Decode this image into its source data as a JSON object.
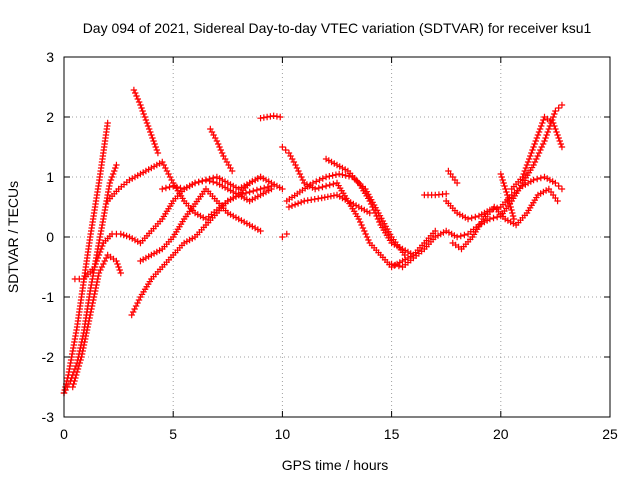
{
  "chart_data": {
    "type": "scatter",
    "title": "Day 094 of 2021, Sidereal Day-to-day VTEC variation (SDTVAR) for receiver ksu1",
    "xlabel": "GPS time / hours",
    "ylabel": "SDTVAR / TECUs",
    "xlim": [
      0,
      25
    ],
    "ylim": [
      -3,
      3
    ],
    "xticks": [
      "0",
      "5",
      "10",
      "15",
      "20",
      "25"
    ],
    "yticks": [
      "-3",
      "-2",
      "-1",
      "0",
      "1",
      "2",
      "3"
    ],
    "grid": true,
    "marker": "plus",
    "color": "#ff0000",
    "series": [
      {
        "name": "s1",
        "x": [
          0.0,
          0.2,
          0.4,
          0.6,
          0.8,
          1.0,
          1.2,
          1.4,
          1.6,
          1.8,
          2.0
        ],
        "y": [
          -2.6,
          -2.3,
          -1.9,
          -1.5,
          -1.0,
          -0.5,
          0.0,
          0.45,
          0.9,
          1.4,
          1.9
        ]
      },
      {
        "name": "s2",
        "x": [
          0.0,
          0.3,
          0.6,
          0.9,
          1.2,
          1.5,
          1.8,
          2.1,
          2.4
        ],
        "y": [
          -2.6,
          -2.4,
          -2.1,
          -1.6,
          -0.9,
          -0.3,
          0.3,
          0.9,
          1.2
        ]
      },
      {
        "name": "s3",
        "x": [
          0.4,
          0.8,
          1.2,
          1.6,
          2.0,
          2.4,
          2.6
        ],
        "y": [
          -2.5,
          -2.0,
          -1.3,
          -0.6,
          -0.3,
          -0.4,
          -0.6
        ]
      },
      {
        "name": "s4",
        "x": [
          0.5,
          0.9,
          1.4,
          1.8,
          2.2,
          2.6,
          3.0,
          3.5,
          4.0,
          4.5,
          5.0,
          5.5,
          6.0,
          6.5,
          7.0,
          7.5,
          8.0,
          8.5,
          9.0,
          9.5,
          10.0
        ],
        "y": [
          -0.7,
          -0.7,
          -0.5,
          -0.1,
          0.05,
          0.05,
          0.0,
          -0.1,
          0.1,
          0.3,
          0.6,
          0.8,
          0.9,
          0.95,
          1.0,
          0.9,
          0.8,
          0.9,
          1.0,
          0.9,
          0.8
        ]
      },
      {
        "name": "s5",
        "x": [
          2.0,
          2.5,
          3.0,
          3.5,
          4.0,
          4.5,
          5.0,
          5.5,
          6.0,
          6.5,
          7.0,
          7.5,
          8.0,
          8.5,
          9.0
        ],
        "y": [
          0.6,
          0.8,
          0.95,
          1.05,
          1.15,
          1.25,
          0.9,
          0.6,
          0.4,
          0.3,
          0.45,
          0.6,
          0.7,
          0.9,
          1.0
        ]
      },
      {
        "name": "s6",
        "x": [
          3.2,
          3.5,
          4.0,
          4.3
        ],
        "y": [
          2.45,
          2.2,
          1.7,
          1.4
        ]
      },
      {
        "name": "s7",
        "x": [
          3.1,
          3.5,
          4.0,
          4.5,
          5.0,
          5.5,
          6.0,
          6.5,
          7.0,
          7.5,
          8.0,
          8.5,
          9.0,
          9.5
        ],
        "y": [
          -1.3,
          -1.0,
          -0.7,
          -0.5,
          -0.3,
          -0.1,
          0.0,
          0.2,
          0.4,
          0.6,
          0.7,
          0.75,
          0.8,
          0.85
        ]
      },
      {
        "name": "s8",
        "x": [
          3.5,
          4.0,
          4.5,
          5.0,
          5.5,
          6.0,
          6.5,
          7.0,
          7.5,
          8.0,
          8.5,
          9.0
        ],
        "y": [
          -0.4,
          -0.3,
          -0.2,
          0.0,
          0.3,
          0.55,
          0.8,
          0.6,
          0.4,
          0.3,
          0.2,
          0.1
        ]
      },
      {
        "name": "s9",
        "x": [
          4.5,
          5.0,
          5.5,
          6.0,
          6.5,
          7.0,
          7.5,
          8.0,
          8.5,
          9.0,
          9.5
        ],
        "y": [
          0.8,
          0.85,
          0.8,
          0.9,
          0.95,
          0.9,
          0.8,
          0.7,
          0.6,
          0.7,
          0.8
        ]
      },
      {
        "name": "s10",
        "x": [
          6.7,
          7.0,
          7.3,
          7.7
        ],
        "y": [
          1.8,
          1.6,
          1.35,
          1.1
        ]
      },
      {
        "name": "s11",
        "x": [
          9.0,
          9.3,
          9.6,
          9.9
        ],
        "y": [
          1.98,
          2.0,
          2.02,
          2.0
        ]
      },
      {
        "name": "s12",
        "x": [
          10.0,
          10.3,
          10.6,
          11.0,
          11.5,
          12.0,
          12.5,
          13.0,
          13.5,
          14.0,
          14.5,
          15.0,
          15.5,
          16.0,
          16.5,
          17.0
        ],
        "y": [
          1.5,
          1.4,
          1.2,
          0.9,
          0.8,
          0.85,
          0.9,
          0.6,
          0.3,
          -0.1,
          -0.3,
          -0.5,
          -0.4,
          -0.3,
          -0.1,
          0.1
        ]
      },
      {
        "name": "s13",
        "x": [
          10.2,
          10.8,
          11.4,
          12.0,
          12.6,
          13.2,
          13.8,
          14.4,
          15.0,
          15.6
        ],
        "y": [
          0.6,
          0.75,
          0.9,
          1.0,
          1.05,
          1.0,
          0.8,
          0.4,
          0.0,
          -0.3
        ]
      },
      {
        "name": "s14",
        "x": [
          10.3,
          11.0,
          11.8,
          12.5,
          13.0,
          13.5,
          14.0
        ],
        "y": [
          0.5,
          0.6,
          0.65,
          0.7,
          0.6,
          0.5,
          0.4
        ]
      },
      {
        "name": "s15",
        "x": [
          12.0,
          12.5,
          13.0,
          13.5,
          14.0,
          14.5,
          15.0,
          15.5,
          16.0
        ],
        "y": [
          1.3,
          1.2,
          1.1,
          0.9,
          0.6,
          0.2,
          -0.1,
          -0.2,
          -0.3
        ]
      },
      {
        "name": "s16",
        "x": [
          10.0,
          10.2
        ],
        "y": [
          0.0,
          0.05
        ]
      },
      {
        "name": "s17",
        "x": [
          15.0,
          15.5,
          16.0,
          16.5,
          17.0,
          17.5,
          18.0,
          18.5,
          19.0,
          19.5,
          20.0,
          20.5,
          21.0,
          21.5,
          22.0,
          22.5,
          22.8
        ],
        "y": [
          -0.45,
          -0.5,
          -0.35,
          -0.2,
          0.0,
          0.1,
          0.0,
          0.05,
          0.2,
          0.3,
          0.35,
          0.6,
          0.9,
          1.2,
          1.6,
          2.1,
          2.2
        ]
      },
      {
        "name": "s18",
        "x": [
          16.5,
          17.0,
          17.5
        ],
        "y": [
          0.7,
          0.7,
          0.72
        ]
      },
      {
        "name": "s19",
        "x": [
          17.5,
          18.0,
          18.5,
          19.0,
          19.5,
          20.0,
          20.5,
          21.0,
          21.5,
          22.0,
          22.5,
          22.8
        ],
        "y": [
          0.6,
          0.4,
          0.3,
          0.35,
          0.45,
          0.5,
          0.7,
          0.85,
          0.95,
          1.0,
          0.9,
          0.8
        ]
      },
      {
        "name": "s20",
        "x": [
          17.8,
          18.2,
          18.7,
          19.2,
          19.7,
          20.2,
          20.7,
          21.2,
          21.7,
          22.2,
          22.6
        ],
        "y": [
          -0.1,
          -0.2,
          0.0,
          0.3,
          0.5,
          0.3,
          0.2,
          0.4,
          0.7,
          0.8,
          0.6
        ]
      },
      {
        "name": "s21",
        "x": [
          20.5,
          21.0,
          21.5,
          22.0,
          22.4,
          22.8
        ],
        "y": [
          0.8,
          1.0,
          1.5,
          2.0,
          1.9,
          1.5
        ]
      },
      {
        "name": "s22",
        "x": [
          17.6,
          17.8,
          18.0
        ],
        "y": [
          1.1,
          1.0,
          0.9
        ]
      },
      {
        "name": "s23",
        "x": [
          20.0,
          20.3,
          20.6
        ],
        "y": [
          1.05,
          0.7,
          0.3
        ]
      }
    ]
  }
}
